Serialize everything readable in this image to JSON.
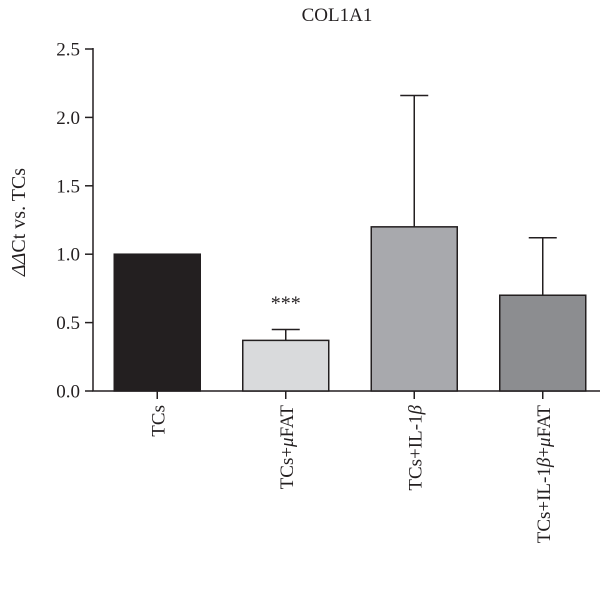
{
  "chart_data": {
    "type": "bar",
    "title": "COL1A1",
    "ylabel_parts": [
      {
        "text": "ΔΔ",
        "italic": true
      },
      {
        "text": "Ct vs. TCs",
        "italic": false
      }
    ],
    "xlabel": "",
    "ylim": [
      0,
      2.5
    ],
    "yticks": [
      "0.0",
      "0.5",
      "1.0",
      "1.5",
      "2.0",
      "2.5"
    ],
    "ytick_values": [
      0,
      0.5,
      1.0,
      1.5,
      2.0,
      2.5
    ],
    "categories": [
      {
        "parts": [
          {
            "text": "TCs",
            "italic": false
          }
        ]
      },
      {
        "parts": [
          {
            "text": "TCs+",
            "italic": false
          },
          {
            "text": "μ",
            "italic": true
          },
          {
            "text": "FAT",
            "italic": false
          }
        ]
      },
      {
        "parts": [
          {
            "text": "TCs+IL-1",
            "italic": false
          },
          {
            "text": "β",
            "italic": true
          }
        ]
      },
      {
        "parts": [
          {
            "text": "TCs+IL-1",
            "italic": false
          },
          {
            "text": "β",
            "italic": true
          },
          {
            "text": "+",
            "italic": false
          },
          {
            "text": "μ",
            "italic": true
          },
          {
            "text": "FAT",
            "italic": false
          }
        ]
      }
    ],
    "values": [
      1.0,
      0.37,
      1.2,
      0.7
    ],
    "error_upper": [
      null,
      0.45,
      2.16,
      1.12
    ],
    "bar_colors": [
      "#231f20",
      "#d9dadc",
      "#a8a9ad",
      "#8c8d90"
    ],
    "annotations": [
      "",
      "***",
      "",
      ""
    ],
    "grid": false,
    "legend": "none"
  }
}
